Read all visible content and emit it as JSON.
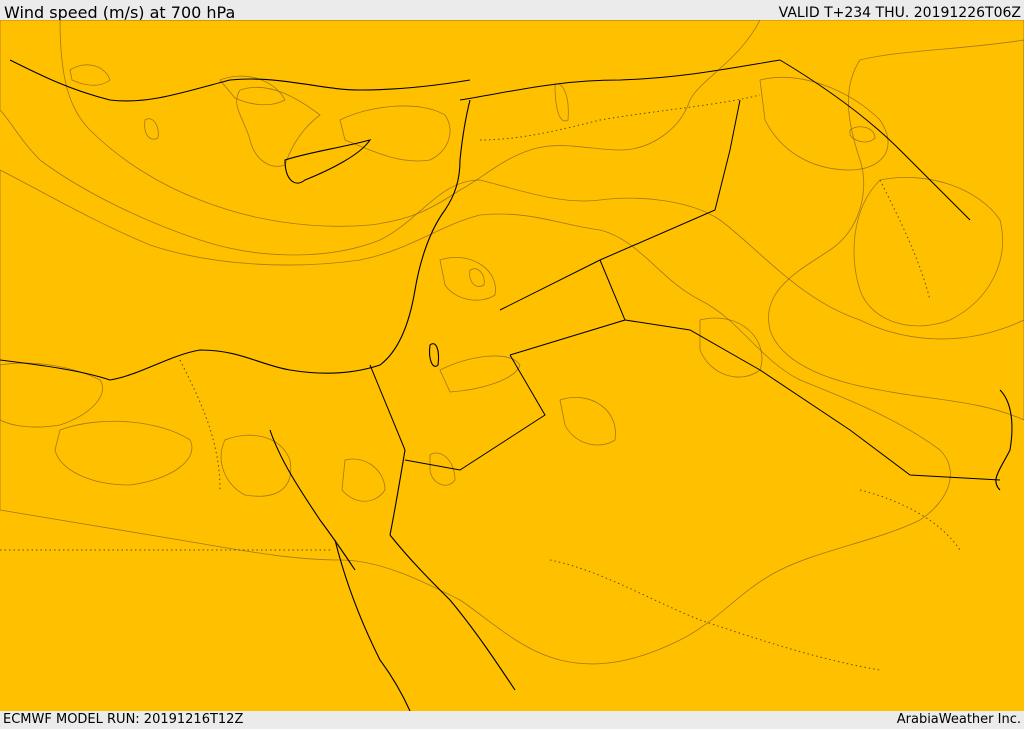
{
  "header": {
    "title": "Wind speed (m/s) at 700 hPa",
    "valid": "VALID T+234 THU. 20191226T06Z"
  },
  "footer": {
    "model_run": "ECMWF MODEL RUN: 20191216T12Z",
    "credit": "ArabiaWeather Inc."
  },
  "colors": {
    "white": "#ffffff",
    "cream": "#fde0b0",
    "yellow": "#ffff00",
    "gold": "#ffd700",
    "amber": "#ffc000",
    "orange": "#ffa500",
    "dark_orange": "#ff8c00",
    "red_orange": "#ff7a10"
  }
}
